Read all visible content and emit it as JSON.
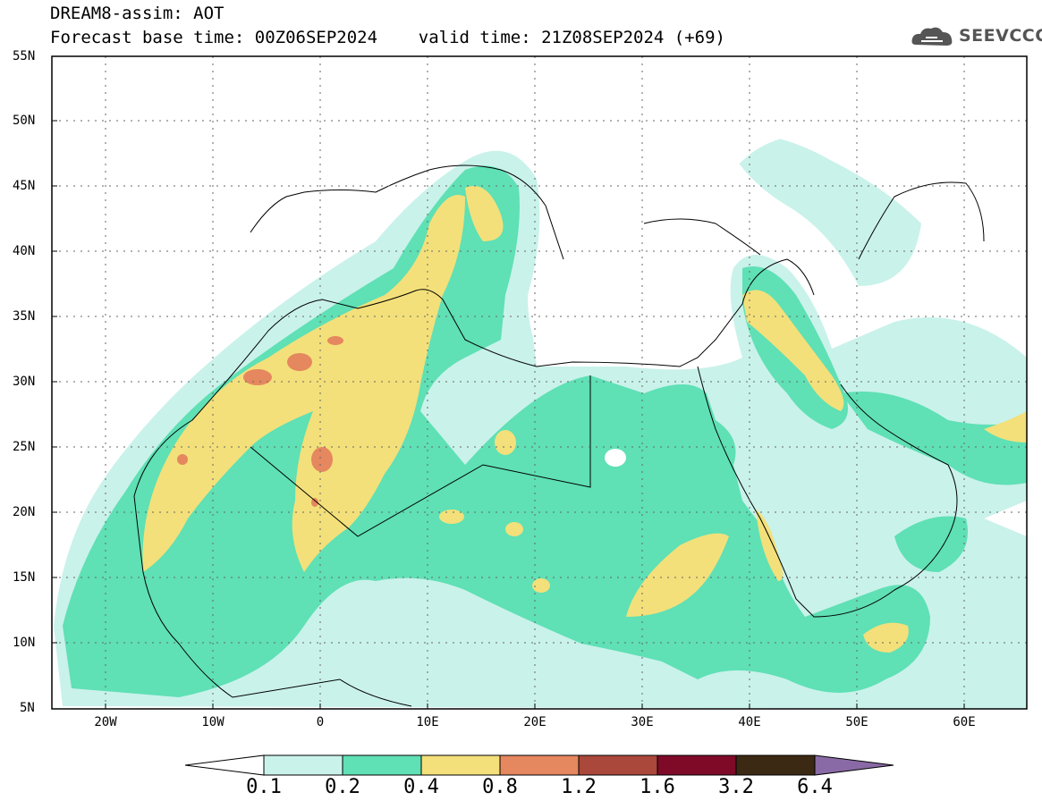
{
  "header": {
    "line1": "DREAM8-assim: AOT",
    "line2": "Forecast base time: 00Z06SEP2024    valid time: 21Z08SEP2024 (+69)",
    "logo_text": "SEEVCCC"
  },
  "map": {
    "lat_labels": [
      "55N",
      "50N",
      "45N",
      "40N",
      "35N",
      "30N",
      "25N",
      "20N",
      "15N",
      "10N",
      "5N"
    ],
    "lon_labels": [
      "20W",
      "10W",
      "0",
      "10E",
      "20E",
      "30E",
      "40E",
      "50E",
      "60E"
    ]
  },
  "legend": {
    "levels": [
      "0.1",
      "0.2",
      "0.4",
      "0.8",
      "1.2",
      "1.6",
      "3.2",
      "6.4"
    ],
    "colors": [
      "#ffffff",
      "#c9f2ea",
      "#5fe0b5",
      "#f3e07a",
      "#e5875f",
      "#a9483b",
      "#7e0a28",
      "#3c2914",
      "#8a6aa6"
    ]
  },
  "colors": {
    "aot_0_1": "#c9f2ea",
    "aot_0_2": "#5fe0b5",
    "aot_0_4": "#f3e07a",
    "aot_0_8": "#e5875f",
    "coast": "#000000"
  }
}
